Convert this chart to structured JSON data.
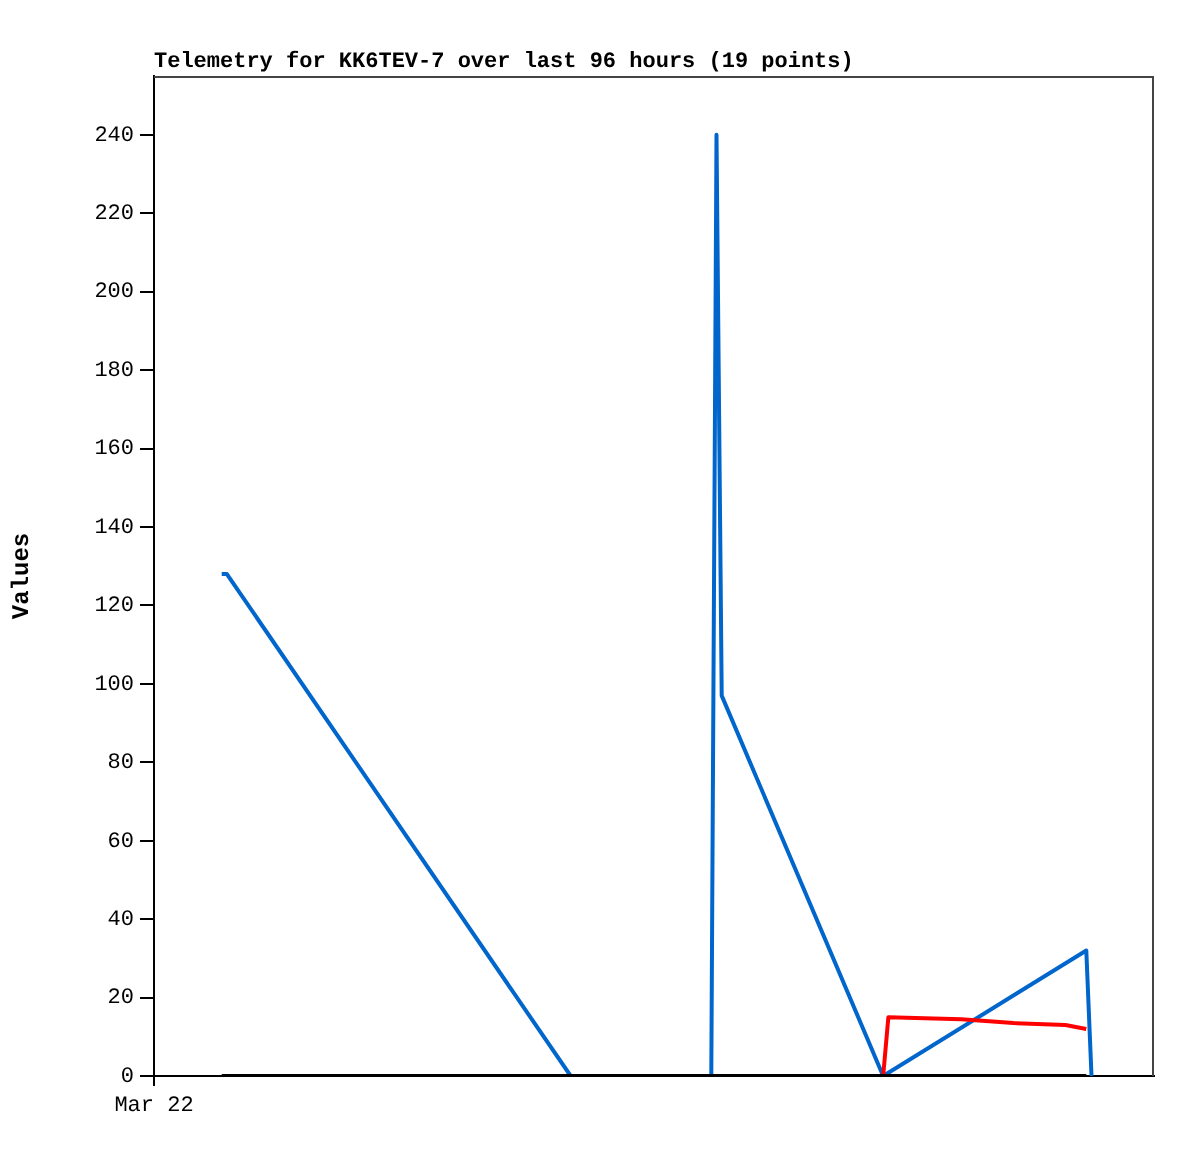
{
  "chart_data": {
    "type": "line",
    "title": "Telemetry for KK6TEV-7 over last 96 hours (19 points)",
    "ylabel": "Values",
    "categories": [
      "Mar 22",
      null,
      null,
      null,
      null,
      null,
      null,
      null,
      null,
      null,
      null,
      null,
      null,
      null,
      null,
      null,
      null,
      null,
      null,
      null,
      null,
      null,
      null,
      null,
      null,
      null,
      null,
      null,
      null,
      null,
      null,
      null,
      null,
      null,
      null,
      null,
      null,
      null,
      null,
      null,
      null,
      null,
      null,
      null,
      null,
      null,
      null,
      null,
      null,
      null,
      null,
      null,
      null,
      null,
      null,
      null,
      null,
      null,
      null,
      null,
      null,
      null,
      null,
      null,
      null,
      null,
      null,
      null,
      null,
      null,
      null,
      null,
      null,
      null,
      null,
      null,
      null,
      null,
      null,
      null,
      null,
      null,
      null,
      null,
      null,
      null,
      null,
      null,
      null,
      null,
      null,
      null,
      null,
      null,
      null,
      null,
      null,
      null,
      null,
      null,
      null,
      null,
      null,
      null,
      null,
      null,
      null,
      null,
      null,
      null,
      null,
      null,
      null,
      null,
      null,
      null,
      null,
      null,
      null,
      null,
      null,
      null,
      null,
      null,
      null,
      null,
      null,
      null,
      null,
      null,
      null,
      null,
      null,
      null,
      null,
      null,
      null,
      null,
      null,
      null,
      null,
      null,
      null,
      null,
      null,
      null,
      null,
      null,
      null,
      null,
      null,
      null,
      null,
      null,
      null,
      null,
      null,
      null,
      null,
      null,
      null,
      null,
      null,
      null,
      null,
      null,
      null,
      null,
      null,
      null,
      null,
      null,
      null,
      null,
      null,
      null,
      null,
      null,
      null,
      null,
      null,
      null,
      null,
      null,
      null,
      null,
      null,
      null,
      null,
      null,
      null,
      null,
      null
    ],
    "ylim": [
      0,
      255
    ],
    "yticks": [
      0,
      20,
      40,
      60,
      80,
      100,
      120,
      140,
      160,
      180,
      200,
      220,
      240
    ],
    "grid": false,
    "legend": false,
    "marker": "none",
    "line_style": "solid",
    "series": [
      {
        "color": "#000000",
        "values": [
          null,
          null,
          null,
          null,
          null,
          null,
          null,
          null,
          null,
          null,
          null,
          null,
          null,
          0,
          null,
          null,
          null,
          null,
          null,
          null,
          null,
          null,
          null,
          null,
          null,
          null,
          null,
          null,
          null,
          null,
          null,
          null,
          null,
          null,
          null,
          null,
          null,
          null,
          null,
          null,
          null,
          null,
          null,
          null,
          null,
          null,
          null,
          null,
          null,
          null,
          null,
          null,
          null,
          null,
          null,
          null,
          null,
          null,
          null,
          null,
          null,
          null,
          null,
          null,
          null,
          null,
          null,
          null,
          null,
          null,
          null,
          null,
          null,
          null,
          null,
          null,
          null,
          null,
          null,
          null,
          null,
          null,
          null,
          null,
          null,
          null,
          null,
          null,
          null,
          null,
          null,
          null,
          null,
          null,
          null,
          null,
          null,
          null,
          null,
          null,
          null,
          null,
          null,
          null,
          null,
          null,
          null,
          null,
          null,
          null,
          null,
          null,
          null,
          null,
          null,
          null,
          null,
          null,
          null,
          null,
          null,
          null,
          null,
          null,
          null,
          null,
          null,
          null,
          null,
          null,
          null,
          null,
          null,
          null,
          null,
          null,
          null,
          null,
          null,
          null,
          null,
          null,
          null,
          null,
          null,
          null,
          null,
          null,
          null,
          null,
          null,
          null,
          null,
          null,
          null,
          null,
          null,
          null,
          null,
          null,
          null,
          null,
          null,
          null,
          null,
          null,
          null,
          null,
          null,
          null,
          null,
          null,
          null,
          null,
          null,
          null,
          null,
          null,
          null,
          0,
          null,
          null,
          null,
          null,
          null,
          null,
          null,
          null,
          null,
          null,
          null,
          null,
          null
        ]
      },
      {
        "color": "#ff0000",
        "values": [
          null,
          null,
          null,
          null,
          null,
          null,
          null,
          null,
          null,
          null,
          null,
          null,
          null,
          null,
          null,
          null,
          null,
          null,
          null,
          null,
          null,
          null,
          null,
          null,
          null,
          null,
          null,
          null,
          null,
          null,
          null,
          null,
          null,
          null,
          null,
          null,
          null,
          null,
          null,
          null,
          null,
          null,
          null,
          null,
          null,
          null,
          null,
          null,
          null,
          null,
          null,
          null,
          null,
          null,
          null,
          null,
          null,
          null,
          null,
          null,
          null,
          null,
          null,
          null,
          null,
          null,
          null,
          null,
          null,
          null,
          null,
          null,
          null,
          null,
          null,
          null,
          null,
          null,
          null,
          null,
          null,
          null,
          null,
          null,
          null,
          null,
          null,
          null,
          null,
          null,
          null,
          null,
          null,
          null,
          null,
          null,
          null,
          null,
          null,
          null,
          null,
          null,
          null,
          null,
          null,
          null,
          null,
          null,
          null,
          null,
          null,
          null,
          null,
          null,
          null,
          null,
          null,
          null,
          null,
          null,
          null,
          null,
          null,
          null,
          null,
          null,
          null,
          null,
          null,
          null,
          null,
          null,
          null,
          null,
          null,
          null,
          null,
          null,
          null,
          null,
          0,
          15,
          null,
          null,
          null,
          null,
          null,
          null,
          null,
          null,
          null,
          null,
          null,
          null,
          null,
          14.5,
          null,
          null,
          null,
          null,
          null,
          null,
          null,
          null,
          null,
          13.5,
          null,
          null,
          null,
          null,
          null,
          null,
          null,
          null,
          null,
          13,
          null,
          null,
          null,
          12,
          null,
          null,
          null,
          null,
          null,
          null,
          null,
          null,
          null,
          null,
          null,
          null,
          null
        ]
      },
      {
        "color": "#0066cc",
        "values": [
          null,
          null,
          null,
          null,
          null,
          null,
          null,
          null,
          null,
          null,
          null,
          null,
          null,
          128,
          128,
          null,
          null,
          null,
          null,
          null,
          null,
          null,
          null,
          null,
          null,
          null,
          null,
          null,
          null,
          null,
          null,
          null,
          null,
          null,
          null,
          null,
          null,
          null,
          null,
          null,
          null,
          null,
          null,
          null,
          null,
          null,
          null,
          null,
          null,
          null,
          null,
          null,
          null,
          null,
          null,
          null,
          null,
          null,
          null,
          null,
          null,
          null,
          null,
          null,
          null,
          null,
          null,
          null,
          null,
          null,
          null,
          null,
          null,
          null,
          null,
          null,
          null,
          null,
          null,
          null,
          0,
          null,
          null,
          null,
          null,
          null,
          null,
          null,
          null,
          null,
          null,
          null,
          null,
          null,
          null,
          null,
          null,
          null,
          null,
          null,
          null,
          null,
          null,
          null,
          null,
          null,
          null,
          0,
          240,
          97,
          null,
          null,
          null,
          null,
          null,
          null,
          null,
          null,
          null,
          null,
          null,
          null,
          null,
          null,
          null,
          null,
          null,
          null,
          null,
          null,
          null,
          null,
          null,
          null,
          null,
          null,
          null,
          null,
          null,
          null,
          0,
          null,
          null,
          null,
          null,
          null,
          null,
          null,
          null,
          null,
          null,
          null,
          null,
          null,
          null,
          null,
          null,
          null,
          null,
          null,
          null,
          null,
          null,
          null,
          null,
          null,
          null,
          null,
          null,
          null,
          null,
          null,
          null,
          null,
          null,
          null,
          null,
          null,
          null,
          32,
          0,
          null,
          null,
          null,
          null,
          null,
          null,
          null,
          null,
          null,
          null,
          null,
          null
        ]
      }
    ]
  }
}
